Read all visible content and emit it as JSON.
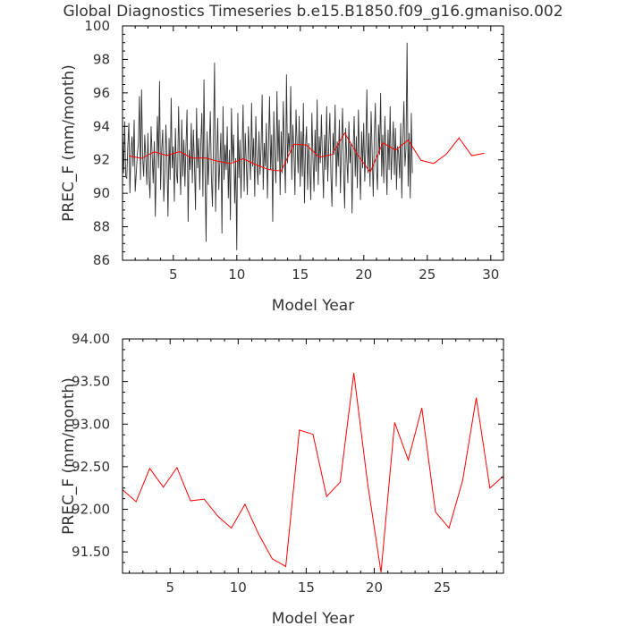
{
  "page": {
    "title": "Global Diagnostics Timeseries b.e15.B1850.f09_g16.gmaniso.002"
  },
  "chart_data": [
    {
      "type": "line",
      "xlabel": "Model Year",
      "ylabel": "PREC_F (mm/month)",
      "xlim": [
        1,
        31
      ],
      "ylim": [
        86,
        100
      ],
      "xticks": [
        5,
        10,
        15,
        20,
        25,
        30
      ],
      "yticks": [
        86,
        88,
        90,
        92,
        94,
        96,
        98,
        100
      ],
      "grid": false,
      "series": [
        {
          "color": "#333333",
          "x_start": 1.0,
          "x_step": 0.0833,
          "values": [
            93.8,
            91.2,
            94.3,
            91.0,
            90.9,
            92.8,
            94.2,
            90.0,
            92.5,
            93.4,
            91.6,
            94.4,
            90.1,
            91.2,
            92.3,
            93.0,
            95.8,
            90.8,
            96.2,
            92.2,
            91.0,
            93.5,
            92.1,
            90.5,
            93.6,
            91.0,
            89.7,
            94.0,
            92.3,
            90.6,
            93.1,
            88.6,
            92.0,
            94.6,
            91.5,
            96.7,
            90.2,
            92.6,
            93.8,
            89.5,
            91.2,
            94.1,
            92.0,
            88.6,
            93.3,
            90.8,
            95.7,
            91.5,
            92.8,
            89.5,
            93.9,
            91.2,
            90.6,
            95.2,
            92.1,
            89.9,
            94.4,
            91.0,
            93.2,
            90.4,
            92.8,
            95.0,
            88.3,
            92.6,
            91.4,
            94.2,
            90.6,
            93.8,
            91.8,
            89.0,
            95.1,
            91.5,
            93.3,
            90.2,
            92.9,
            94.8,
            89.8,
            96.8,
            91.3,
            87.1,
            93.7,
            90.5,
            92.4,
            94.9,
            91.0,
            89.2,
            93.3,
            97.8,
            88.9,
            92.2,
            94.5,
            90.2,
            91.8,
            93.6,
            87.6,
            95.2,
            90.8,
            92.9,
            91.4,
            94.0,
            89.7,
            92.6,
            88.4,
            95.1,
            91.9,
            93.5,
            89.4,
            92.1,
            86.6,
            94.8,
            90.9,
            93.2,
            89.7,
            92.5,
            95.3,
            90.1,
            93.6,
            91.8,
            89.9,
            94.0,
            92.4,
            90.8,
            95.4,
            91.6,
            93.3,
            89.8,
            94.6,
            92.0,
            90.5,
            93.7,
            91.1,
            92.6,
            95.9,
            90.2,
            93.0,
            91.6,
            94.2,
            89.7,
            92.8,
            95.8,
            91.4,
            93.5,
            88.3,
            94.9,
            92.2,
            90.6,
            96.1,
            91.9,
            94.4,
            89.9,
            93.7,
            91.2,
            95.5,
            92.4,
            90.0,
            97.1,
            91.8,
            93.6,
            92.5,
            96.4,
            90.8,
            94.1,
            92.6,
            89.9,
            95.0,
            92.9,
            91.2,
            94.6,
            90.4,
            93.7,
            91.0,
            95.4,
            89.4,
            92.8,
            94.0,
            90.2,
            93.0,
            91.5,
            89.6,
            94.8,
            92.2,
            90.1,
            93.8,
            91.3,
            95.6,
            90.5,
            93.4,
            91.8,
            94.7,
            92.0,
            89.7,
            93.5,
            91.4,
            95.2,
            90.7,
            92.9,
            94.8,
            91.1,
            89.2,
            93.6,
            92.3,
            95.3,
            90.4,
            93.1,
            91.6,
            94.4,
            90.0,
            92.8,
            95.1,
            91.3,
            89.1,
            93.9,
            92.1,
            90.6,
            94.3,
            91.8,
            93.0,
            88.8,
            92.6,
            94.6,
            91.0,
            93.4,
            90.3,
            95.0,
            92.0,
            89.6,
            93.7,
            91.5,
            94.2,
            90.7,
            92.8,
            96.2,
            91.2,
            93.6,
            90.4,
            94.9,
            92.5,
            89.8,
            93.2,
            95.4,
            91.7,
            90.2,
            94.1,
            92.3,
            96.0,
            91.0,
            93.5,
            90.6,
            94.6,
            92.1,
            89.9,
            93.8,
            91.4,
            95.2,
            90.8,
            92.6,
            94.3,
            91.1,
            93.9,
            90.2,
            92.8,
            92.4,
            90.9,
            94.2,
            89.7,
            93.1,
            95.5,
            91.6,
            92.7,
            99.0,
            90.4,
            93.6,
            89.7,
            94.8,
            91.2
          ]
        },
        {
          "color": "#ff0000",
          "x": [
            1.5,
            2.5,
            3.5,
            4.5,
            5.5,
            6.5,
            7.5,
            8.5,
            9.5,
            10.5,
            11.5,
            12.5,
            13.5,
            14.5,
            15.5,
            16.5,
            17.5,
            18.5,
            19.5,
            20.5,
            21.5,
            22.5,
            23.5,
            24.5,
            25.5,
            26.5,
            27.5,
            28.5,
            29.5
          ],
          "values": [
            92.23,
            92.09,
            92.48,
            92.26,
            92.49,
            92.1,
            92.12,
            91.92,
            91.78,
            92.06,
            91.71,
            91.42,
            91.33,
            92.93,
            92.88,
            92.15,
            92.32,
            93.6,
            92.32,
            91.26,
            93.02,
            92.58,
            93.19,
            91.97,
            91.78,
            92.34,
            93.31,
            92.25,
            92.39
          ]
        }
      ]
    },
    {
      "type": "line",
      "xlabel": "Model Year",
      "ylabel": "PREC_F (mm/month)",
      "xlim": [
        1.5,
        29.5
      ],
      "ylim": [
        91.25,
        94.0
      ],
      "xticks": [
        5,
        10,
        15,
        20,
        25
      ],
      "yticks": [
        91.5,
        92.0,
        92.5,
        93.0,
        93.5,
        94.0
      ],
      "ytick_labels": [
        "91.50",
        "92.00",
        "92.50",
        "93.00",
        "93.50",
        "94.00"
      ],
      "grid": false,
      "series": [
        {
          "color": "#ff0000",
          "x": [
            1.5,
            2.5,
            3.5,
            4.5,
            5.5,
            6.5,
            7.5,
            8.5,
            9.5,
            10.5,
            11.5,
            12.5,
            13.5,
            14.5,
            15.5,
            16.5,
            17.5,
            18.5,
            19.5,
            20.5,
            21.5,
            22.5,
            23.5,
            24.5,
            25.5,
            26.5,
            27.5,
            28.5,
            29.5
          ],
          "values": [
            92.23,
            92.09,
            92.48,
            92.26,
            92.49,
            92.1,
            92.12,
            91.92,
            91.78,
            92.06,
            91.71,
            91.42,
            91.33,
            92.93,
            92.88,
            92.15,
            92.32,
            93.6,
            92.32,
            91.26,
            93.02,
            92.58,
            93.19,
            91.97,
            91.78,
            92.34,
            93.31,
            92.25,
            92.39
          ]
        }
      ]
    }
  ]
}
